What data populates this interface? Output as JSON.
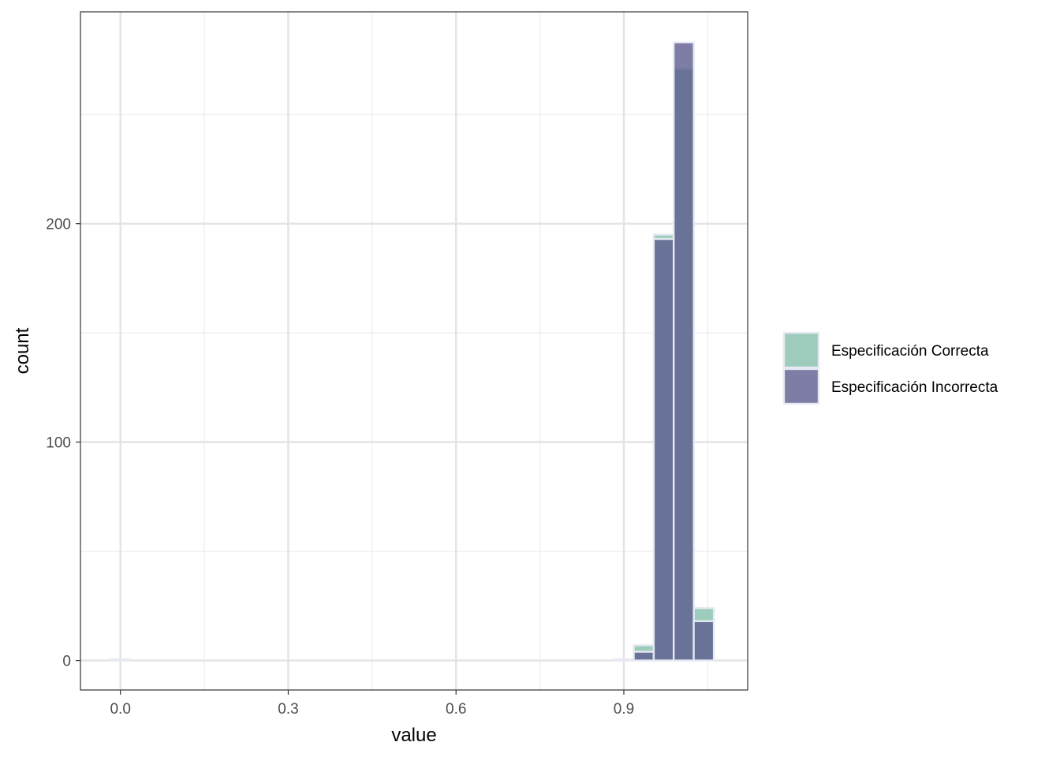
{
  "chart_data": {
    "type": "bar",
    "subtype": "overlaid-histogram",
    "xlabel": "value",
    "ylabel": "count",
    "xlim": [
      -0.0715,
      1.1214
    ],
    "ylim": [
      -13.5,
      297
    ],
    "x_ticks": [
      {
        "value": 0.0,
        "label": "0.0"
      },
      {
        "value": 0.3,
        "label": "0.3"
      },
      {
        "value": 0.6,
        "label": "0.6"
      },
      {
        "value": 0.9,
        "label": "0.9"
      }
    ],
    "y_ticks": [
      {
        "value": 0,
        "label": "0"
      },
      {
        "value": 100,
        "label": "100"
      },
      {
        "value": 200,
        "label": "200"
      }
    ],
    "x_minor_breaks": [
      0.15,
      0.45,
      0.75,
      1.05
    ],
    "y_minor_breaks": [
      50,
      150,
      250
    ],
    "bin_width": 0.036,
    "grid": true,
    "legend_position": "right",
    "series": [
      {
        "name": "Especificación Correcta",
        "color": "#84bfad",
        "bins": [
          {
            "x": 0.0,
            "count": 0.5
          },
          {
            "x": 0.9,
            "count": 0.5
          },
          {
            "x": 0.9357,
            "count": 7
          },
          {
            "x": 0.9714,
            "count": 195
          },
          {
            "x": 1.0071,
            "count": 271
          },
          {
            "x": 1.0429,
            "count": 24
          }
        ]
      },
      {
        "name": "Especificación Incorrecta",
        "color": "#5c5c8f",
        "bins": [
          {
            "x": 0.0,
            "count": 0.5
          },
          {
            "x": 0.9,
            "count": 0.5
          },
          {
            "x": 0.9357,
            "count": 4
          },
          {
            "x": 0.9714,
            "count": 193
          },
          {
            "x": 1.0071,
            "count": 283
          },
          {
            "x": 1.0429,
            "count": 18
          }
        ]
      }
    ]
  }
}
